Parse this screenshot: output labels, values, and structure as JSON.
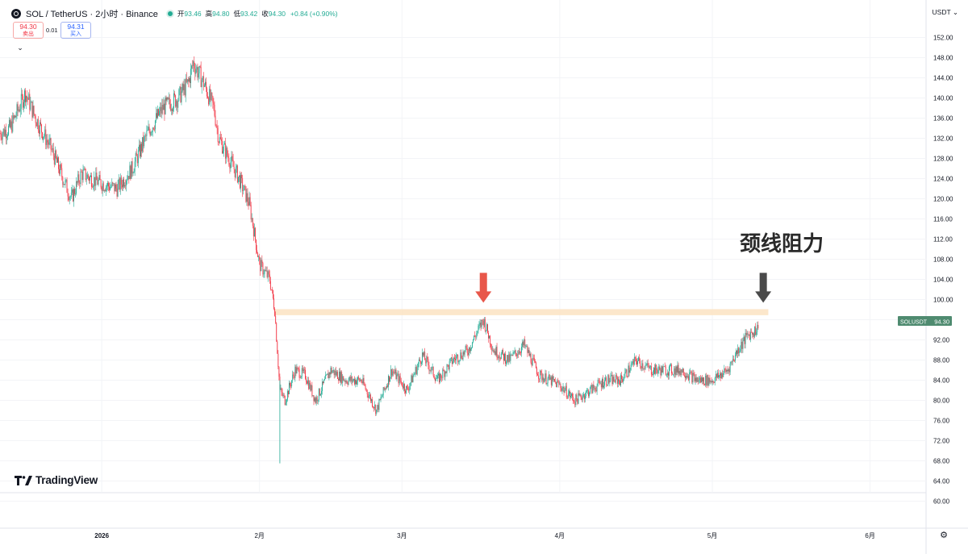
{
  "header": {
    "symbol": "SOL / TetherUS · 2小时 · Binance",
    "ohlc": [
      {
        "label": "开",
        "value": "93.46"
      },
      {
        "label": "高",
        "value": "94.80"
      },
      {
        "label": "低",
        "value": "93.42"
      },
      {
        "label": "收",
        "value": "94.30"
      }
    ],
    "change": "+0.84 (+0.90%)",
    "currency": "USDT ⌄"
  },
  "quote": {
    "sell_price": "94.30",
    "sell_label": "卖出",
    "spread": "0.01",
    "buy_price": "94.31",
    "buy_label": "买入"
  },
  "branding": {
    "text": "TradingView"
  },
  "colors": {
    "up": "#22ab94",
    "down": "#f23645",
    "zone": "#fbe3c2",
    "red_arrow": "#e8574a",
    "dark_arrow": "#4a4a4a",
    "price_tag": "#4f8b70"
  },
  "annotation": {
    "text": "颈线阻力"
  },
  "price_tag": {
    "symbol": "SOLUSDT",
    "price": "94.30",
    "value": 94.3
  },
  "chart_data": {
    "type": "candlestick",
    "ylim": [
      58,
      154
    ],
    "y_ticks": [
      "152.00",
      "148.00",
      "144.00",
      "140.00",
      "136.00",
      "132.00",
      "128.00",
      "124.00",
      "120.00",
      "116.00",
      "112.00",
      "108.00",
      "104.00",
      "100.00",
      "96.00",
      "92.00",
      "88.00",
      "84.00",
      "80.00",
      "76.00",
      "72.00",
      "68.00",
      "64.00",
      "60.00"
    ],
    "x_ticks": [
      {
        "label": "2026",
        "date": "2026-01-01"
      },
      {
        "label": "2月",
        "date": "2026-02-01"
      },
      {
        "label": "3月",
        "date": "2026-03-01"
      },
      {
        "label": "4月",
        "date": "2026-04-01"
      },
      {
        "label": "5月",
        "date": "2026-05-01"
      },
      {
        "label": "6月",
        "date": "2026-06-01"
      }
    ],
    "xlim": [
      "2025-12-12",
      "2026-06-12"
    ],
    "resistance_zone": {
      "from": "2026-02-04",
      "to": "2026-05-12",
      "low": 96.9,
      "high": 98.1
    },
    "arrows": [
      {
        "date": "2026-03-17",
        "color": "red"
      },
      {
        "date": "2026-05-11",
        "color": "dark"
      }
    ],
    "price_path": [
      {
        "date": "2025-12-12",
        "price": 133
      },
      {
        "date": "2025-12-14",
        "price": 134
      },
      {
        "date": "2025-12-17",
        "price": 141
      },
      {
        "date": "2025-12-19",
        "price": 136
      },
      {
        "date": "2025-12-22",
        "price": 130
      },
      {
        "date": "2025-12-24",
        "price": 125
      },
      {
        "date": "2025-12-26",
        "price": 120
      },
      {
        "date": "2025-12-28",
        "price": 125
      },
      {
        "date": "2026-01-01",
        "price": 123
      },
      {
        "date": "2026-01-04",
        "price": 122
      },
      {
        "date": "2026-01-07",
        "price": 126
      },
      {
        "date": "2026-01-10",
        "price": 133
      },
      {
        "date": "2026-01-13",
        "price": 138
      },
      {
        "date": "2026-01-16",
        "price": 140
      },
      {
        "date": "2026-01-18",
        "price": 143
      },
      {
        "date": "2026-01-19",
        "price": 147
      },
      {
        "date": "2026-01-21",
        "price": 143
      },
      {
        "date": "2026-01-23",
        "price": 138
      },
      {
        "date": "2026-01-24",
        "price": 132
      },
      {
        "date": "2026-01-26",
        "price": 128
      },
      {
        "date": "2026-01-28",
        "price": 124
      },
      {
        "date": "2026-01-30",
        "price": 119
      },
      {
        "date": "2026-02-01",
        "price": 107
      },
      {
        "date": "2026-02-03",
        "price": 104
      },
      {
        "date": "2026-02-04",
        "price": 98
      },
      {
        "date": "2026-02-05",
        "price": 82
      },
      {
        "date": "2026-02-06",
        "price": 80
      },
      {
        "date": "2026-02-08",
        "price": 86
      },
      {
        "date": "2026-02-10",
        "price": 85
      },
      {
        "date": "2026-02-12",
        "price": 80
      },
      {
        "date": "2026-02-15",
        "price": 86
      },
      {
        "date": "2026-02-18",
        "price": 84
      },
      {
        "date": "2026-02-21",
        "price": 84
      },
      {
        "date": "2026-02-24",
        "price": 78
      },
      {
        "date": "2026-02-27",
        "price": 86
      },
      {
        "date": "2026-03-02",
        "price": 82
      },
      {
        "date": "2026-03-05",
        "price": 89
      },
      {
        "date": "2026-03-08",
        "price": 84
      },
      {
        "date": "2026-03-11",
        "price": 88
      },
      {
        "date": "2026-03-14",
        "price": 90
      },
      {
        "date": "2026-03-17",
        "price": 96
      },
      {
        "date": "2026-03-19",
        "price": 90
      },
      {
        "date": "2026-03-22",
        "price": 88
      },
      {
        "date": "2026-03-25",
        "price": 91
      },
      {
        "date": "2026-03-28",
        "price": 85
      },
      {
        "date": "2026-04-01",
        "price": 83
      },
      {
        "date": "2026-04-04",
        "price": 80
      },
      {
        "date": "2026-04-07",
        "price": 82
      },
      {
        "date": "2026-04-10",
        "price": 84
      },
      {
        "date": "2026-04-13",
        "price": 84
      },
      {
        "date": "2026-04-16",
        "price": 88
      },
      {
        "date": "2026-04-19",
        "price": 86
      },
      {
        "date": "2026-04-22",
        "price": 86
      },
      {
        "date": "2026-04-25",
        "price": 86
      },
      {
        "date": "2026-04-28",
        "price": 84
      },
      {
        "date": "2026-05-01",
        "price": 84
      },
      {
        "date": "2026-05-04",
        "price": 86
      },
      {
        "date": "2026-05-06",
        "price": 90
      },
      {
        "date": "2026-05-08",
        "price": 93
      },
      {
        "date": "2026-05-10",
        "price": 94.3
      }
    ]
  }
}
